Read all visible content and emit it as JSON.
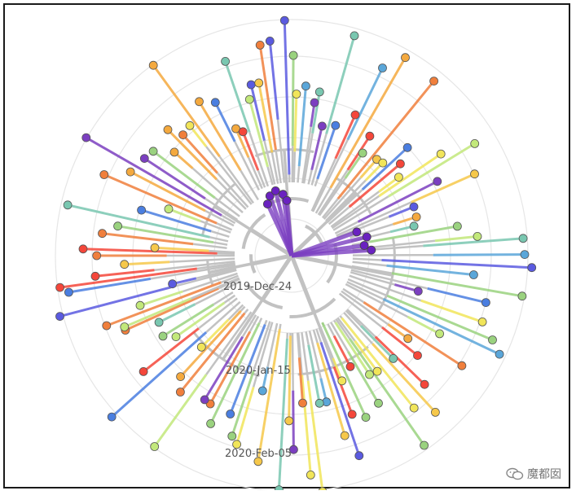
{
  "chart_data": {
    "type": "radial-phylogenetic-tree",
    "title": "",
    "time_axis_labels": [
      "2019-Dec-24",
      "2020-Jan-15",
      "2020-Feb-05"
    ],
    "grid": true,
    "colors": {
      "background": "#ffffff",
      "grid": "#e6e6e6",
      "branch": "#c2c2c2",
      "palette": [
        "#f4463a",
        "#f07f3c",
        "#f4a93e",
        "#f6c84a",
        "#f1e559",
        "#c2e87a",
        "#9ad27f",
        "#79c7b0",
        "#5aa6d9",
        "#4a7ee0",
        "#5a5ae0",
        "#7b3fc0"
      ]
    }
  },
  "watermark": {
    "text": "魔都囡",
    "icon": "wechat-icon"
  }
}
